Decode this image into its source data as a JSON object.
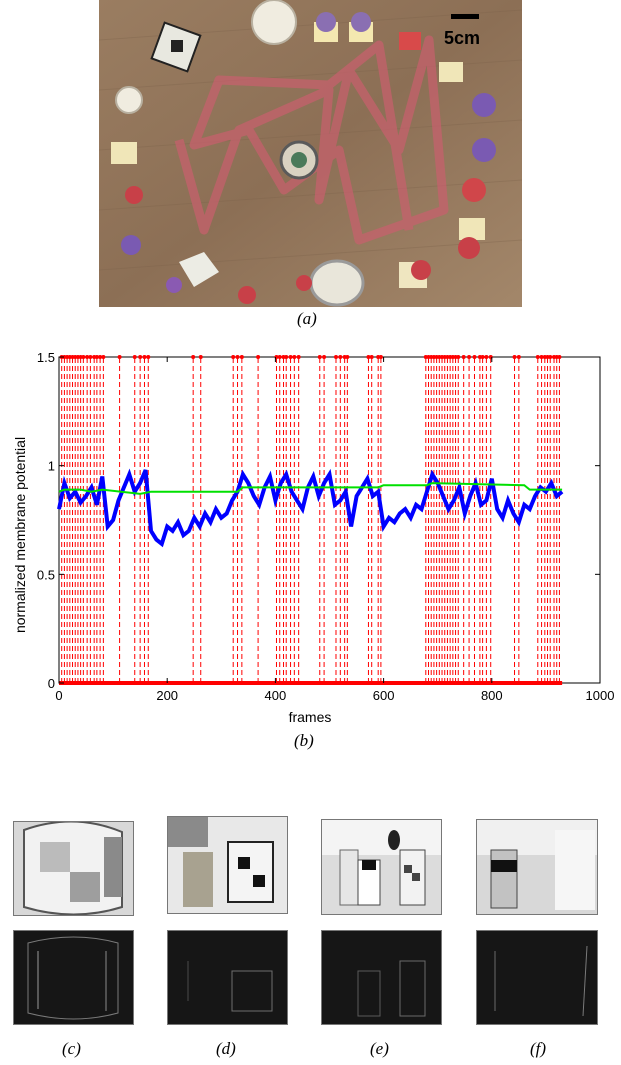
{
  "figure_a": {
    "scale_label": "5cm",
    "caption": "(a)"
  },
  "figure_b": {
    "caption": "(b)"
  },
  "thumbnails": {
    "captions": [
      "(c)",
      "(d)",
      "(e)",
      "(f)"
    ]
  },
  "chart_data": {
    "type": "line",
    "xlabel": "frames",
    "ylabel": "normalized membrane potential",
    "xlim": [
      0,
      1000
    ],
    "ylim": [
      0,
      1.5
    ],
    "x_ticks": [
      "0",
      "200",
      "400",
      "600",
      "800",
      "1000"
    ],
    "y_ticks": [
      "0",
      "0.5",
      "1",
      "1.5"
    ],
    "grid": false,
    "colors": {
      "potential": "#0000ff",
      "threshold": "#00e000",
      "spikes": "#ff0000"
    },
    "series": [
      {
        "key": "potential",
        "x": [
          0,
          10,
          20,
          30,
          40,
          50,
          60,
          70,
          80,
          90,
          100,
          110,
          120,
          130,
          140,
          150,
          160,
          170,
          180,
          190,
          200,
          210,
          220,
          230,
          240,
          250,
          260,
          270,
          280,
          290,
          300,
          310,
          320,
          330,
          340,
          350,
          360,
          370,
          380,
          390,
          400,
          410,
          420,
          430,
          440,
          450,
          460,
          470,
          480,
          490,
          500,
          510,
          520,
          530,
          540,
          550,
          560,
          570,
          580,
          590,
          600,
          610,
          620,
          630,
          640,
          650,
          660,
          670,
          680,
          690,
          700,
          710,
          720,
          730,
          740,
          750,
          760,
          770,
          780,
          790,
          800,
          810,
          820,
          830,
          840,
          850,
          860,
          870,
          880,
          890,
          900,
          910,
          920,
          930
        ],
        "y": [
          0.8,
          0.92,
          0.85,
          0.88,
          0.83,
          0.86,
          0.9,
          0.82,
          0.95,
          0.72,
          0.75,
          0.84,
          0.9,
          0.96,
          0.88,
          0.92,
          0.98,
          0.7,
          0.66,
          0.64,
          0.72,
          0.7,
          0.74,
          0.68,
          0.7,
          0.76,
          0.72,
          0.78,
          0.74,
          0.8,
          0.76,
          0.78,
          0.84,
          0.88,
          0.96,
          0.92,
          0.86,
          0.82,
          0.9,
          0.95,
          0.84,
          0.92,
          0.96,
          0.88,
          0.84,
          0.8,
          0.9,
          0.95,
          0.86,
          0.92,
          0.96,
          0.82,
          0.84,
          0.88,
          0.72,
          0.86,
          0.9,
          0.94,
          0.86,
          0.88,
          0.72,
          0.76,
          0.74,
          0.78,
          0.8,
          0.76,
          0.82,
          0.8,
          0.88,
          0.96,
          0.92,
          0.86,
          0.8,
          0.84,
          0.9,
          0.78,
          0.86,
          0.92,
          0.82,
          0.84,
          0.94,
          0.8,
          0.76,
          0.84,
          0.78,
          0.74,
          0.82,
          0.8,
          0.86,
          0.9,
          0.88,
          0.92,
          0.86,
          0.88
        ]
      },
      {
        "key": "threshold",
        "x": [
          0,
          10,
          40,
          60,
          80,
          150,
          170,
          330,
          340,
          590,
          600,
          680,
          690,
          860,
          870,
          930
        ],
        "y": [
          0.88,
          0.89,
          0.89,
          0.88,
          0.89,
          0.87,
          0.88,
          0.88,
          0.9,
          0.9,
          0.91,
          0.91,
          0.92,
          0.91,
          0.89,
          0.89
        ]
      }
    ],
    "spike_frames": [
      5,
      10,
      15,
      20,
      25,
      30,
      35,
      40,
      45,
      52,
      58,
      65,
      70,
      76,
      82,
      112,
      140,
      150,
      158,
      165,
      248,
      262,
      322,
      330,
      338,
      368,
      402,
      408,
      415,
      420,
      428,
      435,
      443,
      482,
      490,
      512,
      520,
      528,
      533,
      572,
      578,
      590,
      595,
      678,
      683,
      688,
      693,
      698,
      703,
      708,
      713,
      718,
      723,
      728,
      733,
      738,
      748,
      758,
      768,
      778,
      783,
      790,
      798,
      842,
      850,
      885,
      892,
      898,
      903,
      908,
      915,
      920,
      925
    ]
  }
}
